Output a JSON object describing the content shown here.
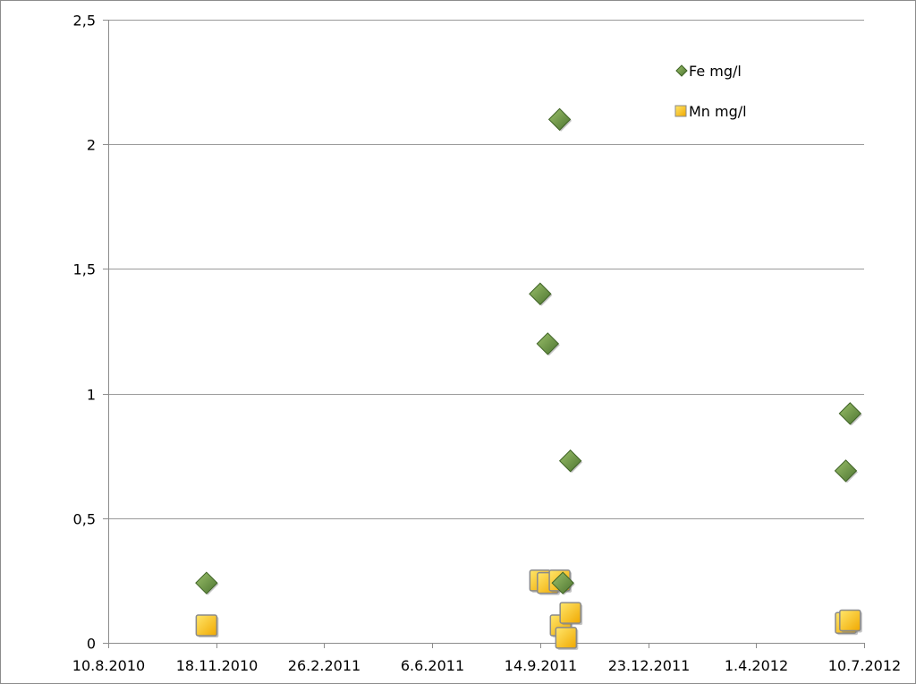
{
  "chart_data": {
    "type": "scatter",
    "title": "",
    "xlabel": "",
    "ylabel": "",
    "x_axis": {
      "min": "2010-08-10",
      "max": "2012-07-10",
      "ticks": [
        {
          "date": "2010-08-10",
          "label": "10.8.2010"
        },
        {
          "date": "2010-11-18",
          "label": "18.11.2010"
        },
        {
          "date": "2011-02-26",
          "label": "26.2.2011"
        },
        {
          "date": "2011-06-06",
          "label": "6.6.2011"
        },
        {
          "date": "2011-09-14",
          "label": "14.9.2011"
        },
        {
          "date": "2011-12-23",
          "label": "23.12.2011"
        },
        {
          "date": "2012-04-01",
          "label": "1.4.2012"
        },
        {
          "date": "2012-07-10",
          "label": "10.7.2012"
        }
      ]
    },
    "y_axis": {
      "min": 0,
      "max": 2.5,
      "ticks": [
        {
          "value": 0,
          "label": "0"
        },
        {
          "value": 0.5,
          "label": "0,5"
        },
        {
          "value": 1,
          "label": "1"
        },
        {
          "value": 1.5,
          "label": "1,5"
        },
        {
          "value": 2,
          "label": "2"
        },
        {
          "value": 2.5,
          "label": "2,5"
        }
      ]
    },
    "grid": "horizontal",
    "legend_position": "top-right",
    "series": [
      {
        "name": "Fe mg/l",
        "marker": "diamond",
        "color": "#5f8a3c",
        "points": [
          {
            "x": "2010-11-09",
            "y": 0.24
          },
          {
            "x": "2011-09-14",
            "y": 1.4
          },
          {
            "x": "2011-09-21",
            "y": 1.2
          },
          {
            "x": "2011-10-02",
            "y": 2.1
          },
          {
            "x": "2011-10-05",
            "y": 0.24
          },
          {
            "x": "2011-10-12",
            "y": 0.73
          },
          {
            "x": "2012-06-23",
            "y": 0.69
          },
          {
            "x": "2012-06-27",
            "y": 0.92
          }
        ]
      },
      {
        "name": "Mn mg/l",
        "marker": "square",
        "color": "#ffc000",
        "points": [
          {
            "x": "2010-11-09",
            "y": 0.07
          },
          {
            "x": "2011-09-14",
            "y": 0.25
          },
          {
            "x": "2011-09-21",
            "y": 0.24
          },
          {
            "x": "2011-10-02",
            "y": 0.25
          },
          {
            "x": "2011-10-03",
            "y": 0.07
          },
          {
            "x": "2011-10-08",
            "y": 0.02
          },
          {
            "x": "2011-10-12",
            "y": 0.12
          },
          {
            "x": "2012-06-23",
            "y": 0.08
          },
          {
            "x": "2012-06-27",
            "y": 0.09
          }
        ]
      }
    ]
  }
}
